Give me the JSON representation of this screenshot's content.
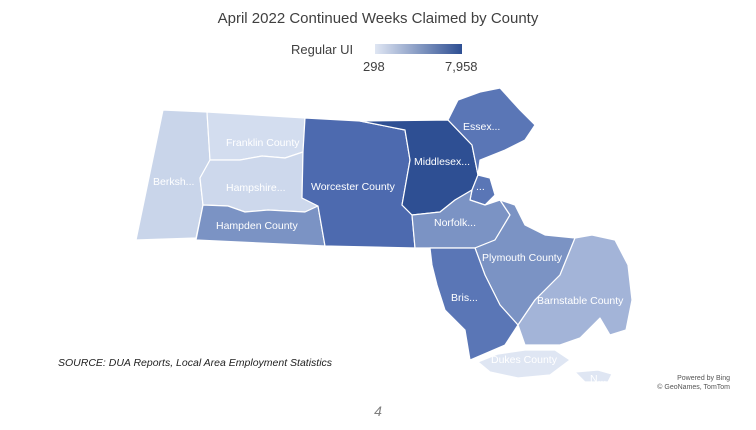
{
  "title": "April 2022 Continued Weeks Claimed by County",
  "legend": {
    "label": "Regular UI",
    "min": "298",
    "max": "7,958",
    "color_low": "#dfe6f3",
    "color_high": "#2e4f93"
  },
  "counties": [
    {
      "id": "berkshire",
      "label": "Berksh...",
      "color": "#c9d5ea"
    },
    {
      "id": "franklin",
      "label": "Franklin County",
      "color": "#d3ddef"
    },
    {
      "id": "hampshire",
      "label": "Hampshire...",
      "color": "#cdd8ec"
    },
    {
      "id": "hampden",
      "label": "Hampden County",
      "color": "#7b93c4"
    },
    {
      "id": "worcester",
      "label": "Worcester County",
      "color": "#4d6aaf"
    },
    {
      "id": "middlesex",
      "label": "Middlesex...",
      "color": "#2e4f93"
    },
    {
      "id": "essex",
      "label": "Essex...",
      "color": "#5a76b6"
    },
    {
      "id": "suffolk",
      "label": "...",
      "color": "#5a76b6"
    },
    {
      "id": "norfolk",
      "label": "Norfolk...",
      "color": "#7b93c4"
    },
    {
      "id": "plymouth",
      "label": "Plymouth County",
      "color": "#7b93c4"
    },
    {
      "id": "bristol",
      "label": "Bris...",
      "color": "#5a76b6"
    },
    {
      "id": "barnstable",
      "label": "Barnstable County",
      "color": "#a3b4d8"
    },
    {
      "id": "dukes",
      "label": "Dukes County",
      "color": "#dfe6f3"
    },
    {
      "id": "nantucket",
      "label": "N...",
      "color": "#dfe6f3"
    }
  ],
  "source": "SOURCE: DUA Reports, Local Area Employment Statistics",
  "credit": {
    "line1": "Powered by Bing",
    "line2": "© GeoNames, TomTom"
  },
  "page_number": "4"
}
